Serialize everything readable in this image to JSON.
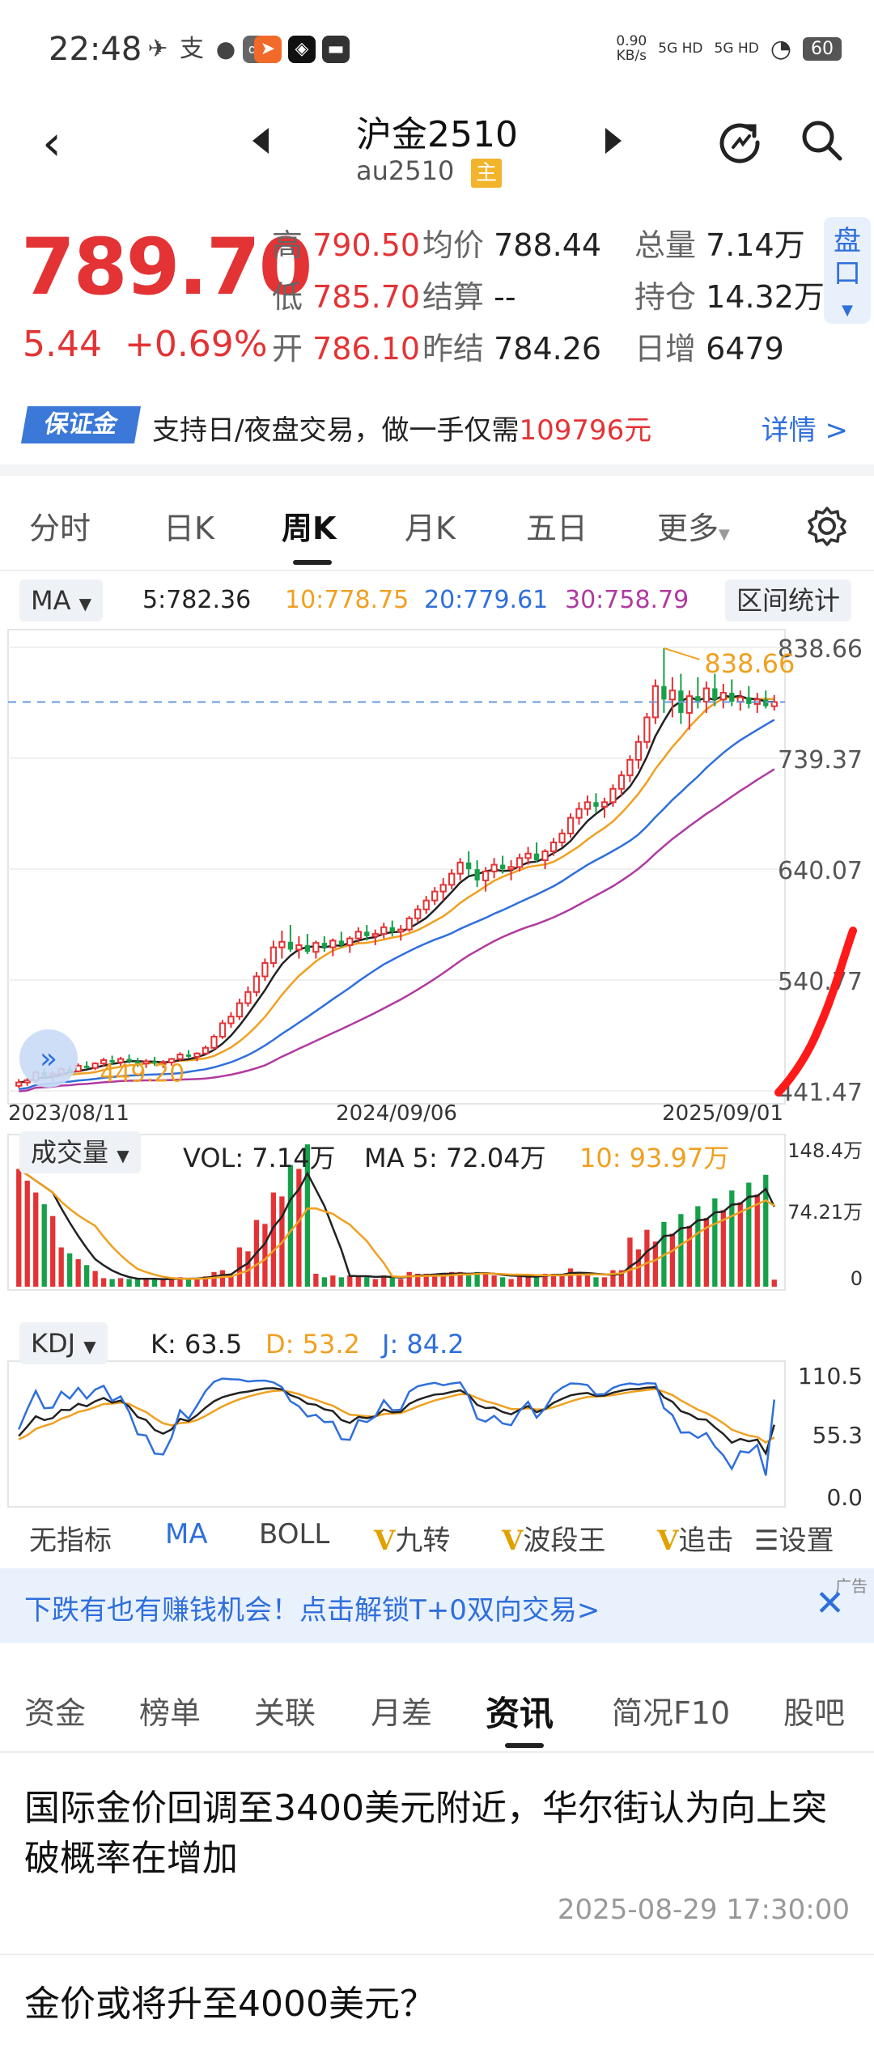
{
  "status_bar": {
    "time": "22:48",
    "net_speed_value": "0.90",
    "net_speed_unit": "KB/s",
    "sim1": "5G HD",
    "sim2": "5G HD",
    "battery": "60"
  },
  "header": {
    "title": "沪金2510",
    "code": "au2510",
    "main_tag": "主"
  },
  "quote": {
    "last": "789.70",
    "change": "5.44",
    "change_pct": "+0.69%",
    "high_label": "高",
    "high": "790.50",
    "low_label": "低",
    "low": "785.70",
    "open_label": "开",
    "open": "786.10",
    "avg_label": "均价",
    "avg": "788.44",
    "settle_label": "结算",
    "settle": "--",
    "prev_settle_label": "昨结",
    "prev_settle": "784.26",
    "volume_label": "总量",
    "volume": "7.14万",
    "oi_label": "持仓",
    "oi": "14.32万",
    "daily_inc_label": "日增",
    "daily_inc": "6479",
    "pankou": "盘口"
  },
  "margin_banner": {
    "badge": "保证金",
    "text_prefix": "支持日/夜盘交易，做一手仅需",
    "amount": "109796元",
    "link": "详情 >"
  },
  "period_tabs": [
    "分时",
    "日K",
    "周K",
    "月K",
    "五日",
    "更多"
  ],
  "ma_bar": {
    "selector": "MA",
    "ma5": "5:782.36",
    "ma10": "10:778.75",
    "ma20": "20:779.61",
    "ma30": "30:758.79",
    "range_stats": "区间统计"
  },
  "colors": {
    "up": "#e33335",
    "down": "#16a04a",
    "ma5": "#222222",
    "ma10": "#f0a020",
    "ma20": "#2f6fdc",
    "ma30": "#b03aa0",
    "accent": "#2f6fdc"
  },
  "chart_data": [
    {
      "type": "candlestick",
      "y_ticks": [
        "838.66",
        "739.37",
        "640.07",
        "540.77",
        "441.47"
      ],
      "ylim": [
        441.47,
        838.66
      ],
      "x_ticks": [
        "2023/08/11",
        "2024/09/06",
        "2025/09/01"
      ],
      "annotations": {
        "max_label": "838.66",
        "min_label": "449.20"
      },
      "last_price": 789.7,
      "ohlc_weekly": [
        [
          446,
          452,
          444,
          449
        ],
        [
          449,
          453,
          446,
          451
        ],
        [
          451,
          460,
          449,
          458
        ],
        [
          458,
          462,
          452,
          455
        ],
        [
          455,
          459,
          450,
          457
        ],
        [
          457,
          463,
          455,
          461
        ],
        [
          461,
          464,
          457,
          459
        ],
        [
          459,
          466,
          458,
          464
        ],
        [
          464,
          468,
          461,
          462
        ],
        [
          462,
          467,
          460,
          466
        ],
        [
          466,
          471,
          463,
          469
        ],
        [
          469,
          473,
          465,
          467
        ],
        [
          467,
          472,
          464,
          470
        ],
        [
          470,
          474,
          466,
          468
        ],
        [
          468,
          471,
          463,
          466
        ],
        [
          466,
          470,
          462,
          468
        ],
        [
          468,
          472,
          464,
          466
        ],
        [
          466,
          469,
          462,
          467
        ],
        [
          467,
          471,
          464,
          470
        ],
        [
          470,
          476,
          468,
          474
        ],
        [
          474,
          478,
          471,
          472
        ],
        [
          472,
          476,
          468,
          475
        ],
        [
          475,
          482,
          474,
          480
        ],
        [
          480,
          492,
          478,
          490
        ],
        [
          490,
          505,
          488,
          502
        ],
        [
          502,
          512,
          498,
          508
        ],
        [
          508,
          524,
          505,
          520
        ],
        [
          520,
          535,
          517,
          530
        ],
        [
          530,
          548,
          526,
          544
        ],
        [
          544,
          560,
          540,
          556
        ],
        [
          556,
          576,
          552,
          570
        ],
        [
          570,
          585,
          560,
          575
        ],
        [
          575,
          590,
          566,
          568
        ],
        [
          568,
          580,
          560,
          572
        ],
        [
          572,
          582,
          564,
          566
        ],
        [
          566,
          576,
          560,
          574
        ],
        [
          574,
          580,
          566,
          570
        ],
        [
          570,
          578,
          562,
          576
        ],
        [
          576,
          584,
          570,
          572
        ],
        [
          572,
          580,
          565,
          578
        ],
        [
          578,
          588,
          574,
          584
        ],
        [
          584,
          590,
          576,
          580
        ],
        [
          580,
          586,
          572,
          582
        ],
        [
          582,
          592,
          578,
          588
        ],
        [
          588,
          594,
          580,
          584
        ],
        [
          584,
          590,
          576,
          586
        ],
        [
          586,
          598,
          584,
          596
        ],
        [
          596,
          608,
          592,
          604
        ],
        [
          604,
          616,
          600,
          612
        ],
        [
          612,
          624,
          608,
          620
        ],
        [
          620,
          632,
          612,
          626
        ],
        [
          626,
          640,
          622,
          636
        ],
        [
          636,
          650,
          630,
          646
        ],
        [
          646,
          656,
          634,
          640
        ],
        [
          640,
          648,
          624,
          630
        ],
        [
          630,
          642,
          620,
          638
        ],
        [
          638,
          650,
          632,
          644
        ],
        [
          644,
          652,
          636,
          640
        ],
        [
          640,
          648,
          630,
          642
        ],
        [
          642,
          654,
          638,
          650
        ],
        [
          650,
          660,
          644,
          654
        ],
        [
          654,
          664,
          646,
          648
        ],
        [
          648,
          658,
          640,
          656
        ],
        [
          656,
          668,
          652,
          664
        ],
        [
          664,
          676,
          660,
          672
        ],
        [
          672,
          690,
          668,
          686
        ],
        [
          686,
          700,
          680,
          694
        ],
        [
          694,
          706,
          688,
          700
        ],
        [
          700,
          708,
          690,
          696
        ],
        [
          696,
          704,
          686,
          700
        ],
        [
          700,
          716,
          696,
          712
        ],
        [
          712,
          728,
          706,
          724
        ],
        [
          724,
          742,
          718,
          738
        ],
        [
          738,
          760,
          730,
          754
        ],
        [
          754,
          780,
          748,
          776
        ],
        [
          776,
          810,
          770,
          804
        ],
        [
          804,
          838,
          780,
          792
        ],
        [
          792,
          812,
          776,
          800
        ],
        [
          800,
          815,
          770,
          780
        ],
        [
          780,
          800,
          765,
          795
        ],
        [
          795,
          812,
          784,
          790
        ],
        [
          790,
          808,
          780,
          802
        ],
        [
          802,
          815,
          786,
          792
        ],
        [
          792,
          806,
          784,
          798
        ],
        [
          798,
          810,
          786,
          790
        ],
        [
          790,
          800,
          782,
          794
        ],
        [
          794,
          804,
          784,
          788
        ],
        [
          788,
          798,
          780,
          792
        ],
        [
          792,
          800,
          784,
          786
        ],
        [
          786,
          796,
          782,
          789.7
        ]
      ]
    },
    {
      "type": "bar",
      "title": "成交量",
      "vol_label": "VOL: 7.14万",
      "ma5_label": "MA 5: 72.04万",
      "ma10_label": "10: 93.97万",
      "y_ticks": [
        "148.4万",
        "74.21万",
        "0"
      ],
      "ylim": [
        0,
        148.4
      ]
    },
    {
      "type": "line",
      "title": "KDJ",
      "k_label": "K: 63.5",
      "d_label": "D: 53.2",
      "j_label": "J: 84.2",
      "y_ticks": [
        "110.5",
        "55.3",
        "0.0"
      ],
      "ylim": [
        0,
        110.5
      ],
      "K": 63.5,
      "D": 53.2,
      "J": 84.2
    }
  ],
  "indicator_tabs": [
    "无指标",
    "MA",
    "BOLL",
    "九转",
    "波段王",
    "追击",
    "设置"
  ],
  "ad": {
    "text": "下跌有也有赚钱机会！点击解锁T+0双向交易>",
    "tag": "广告"
  },
  "bottom_tabs": [
    "资金",
    "榜单",
    "关联",
    "月差",
    "资讯",
    "简况F10",
    "股吧"
  ],
  "news": [
    {
      "title": "国际金价回调至3400美元附近，华尔街认为向上突破概率在增加",
      "time": "2025-08-29 17:30:00"
    },
    {
      "title": "金价或将升至4000美元？",
      "time": ""
    }
  ]
}
